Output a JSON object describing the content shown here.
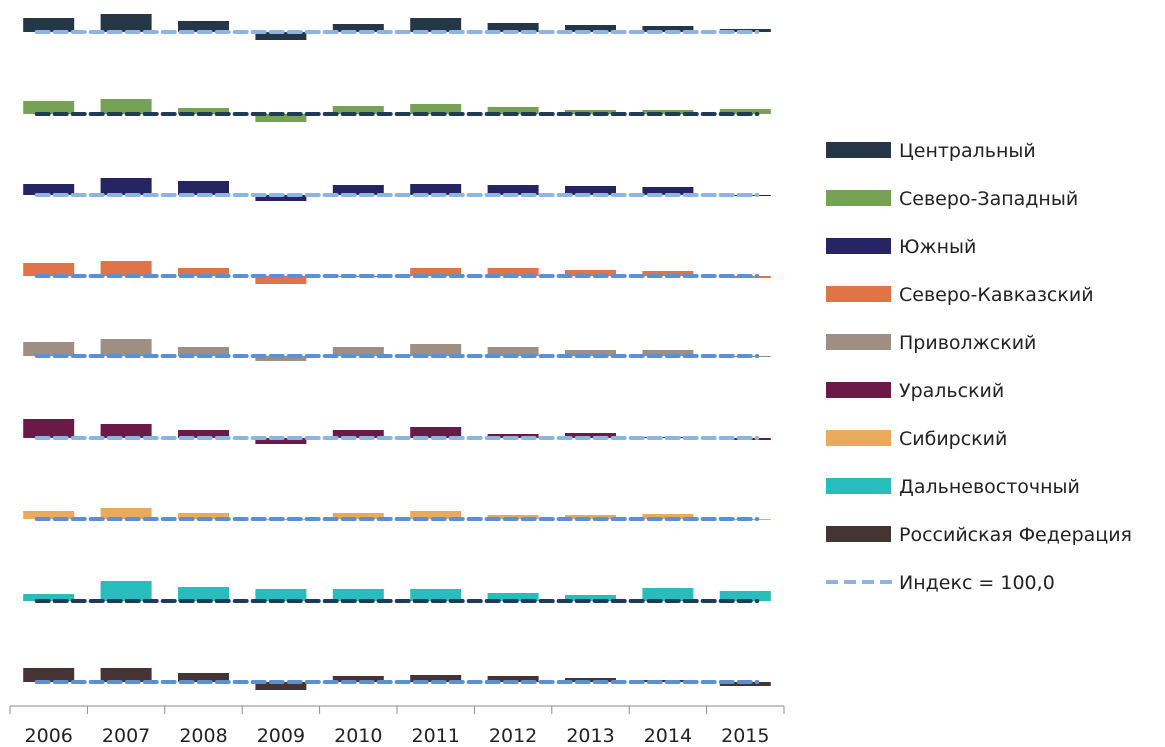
{
  "chart_data": {
    "type": "bar",
    "categories": [
      "2006",
      "2007",
      "2008",
      "2009",
      "2010",
      "2011",
      "2012",
      "2013",
      "2014",
      "2015"
    ],
    "baseline": 100,
    "reference_line": {
      "name": "Индекс = 100,0",
      "value": 100,
      "color": "#8db4e2"
    },
    "grid": false,
    "legend_position": "right",
    "series": [
      {
        "name": "Центральный",
        "color": "#253746",
        "index_line_color": "#8db4e2",
        "values": [
          114,
          118,
          111,
          92,
          108,
          114,
          109,
          107,
          106,
          103
        ]
      },
      {
        "name": "Северо-Западный",
        "color": "#77a255",
        "index_line_color": "#1f3b57",
        "values": [
          113,
          115,
          106,
          92,
          108,
          110,
          107,
          104,
          104,
          105
        ]
      },
      {
        "name": "Южный",
        "color": "#262463",
        "index_line_color": "#8db4e2",
        "values": [
          111,
          117,
          114,
          94,
          110,
          111,
          110,
          109,
          108,
          99
        ]
      },
      {
        "name": "Северо-Кавказский",
        "color": "#e07348",
        "index_line_color": "#5b8fd6",
        "values": [
          113,
          115,
          108,
          92,
          100,
          108,
          108,
          106,
          105,
          98
        ]
      },
      {
        "name": "Приволжский",
        "color": "#9e8f82",
        "index_line_color": "#5b8fd6",
        "values": [
          114,
          117,
          109,
          95,
          109,
          112,
          109,
          106,
          106,
          100
        ]
      },
      {
        "name": "Уральский",
        "color": "#6b1a47",
        "index_line_color": "#8db4e2",
        "values": [
          119,
          114,
          108,
          94,
          108,
          111,
          104,
          105,
          101,
          98
        ]
      },
      {
        "name": "Сибирский",
        "color": "#e8ab5c",
        "index_line_color": "#5b8fd6",
        "values": [
          108,
          111,
          106,
          99,
          106,
          108,
          104,
          104,
          105,
          100
        ]
      },
      {
        "name": "Дальневосточный",
        "color": "#28bcbc",
        "index_line_color": "#1f3b57",
        "values": [
          107,
          120,
          114,
          112,
          112,
          112,
          108,
          106,
          113,
          110
        ]
      },
      {
        "name": "Российская Федерация",
        "color": "#443433",
        "index_line_color": "#5b8fd6",
        "values": [
          114,
          114,
          109,
          92,
          106,
          107,
          106,
          104,
          102,
          96
        ]
      }
    ]
  }
}
